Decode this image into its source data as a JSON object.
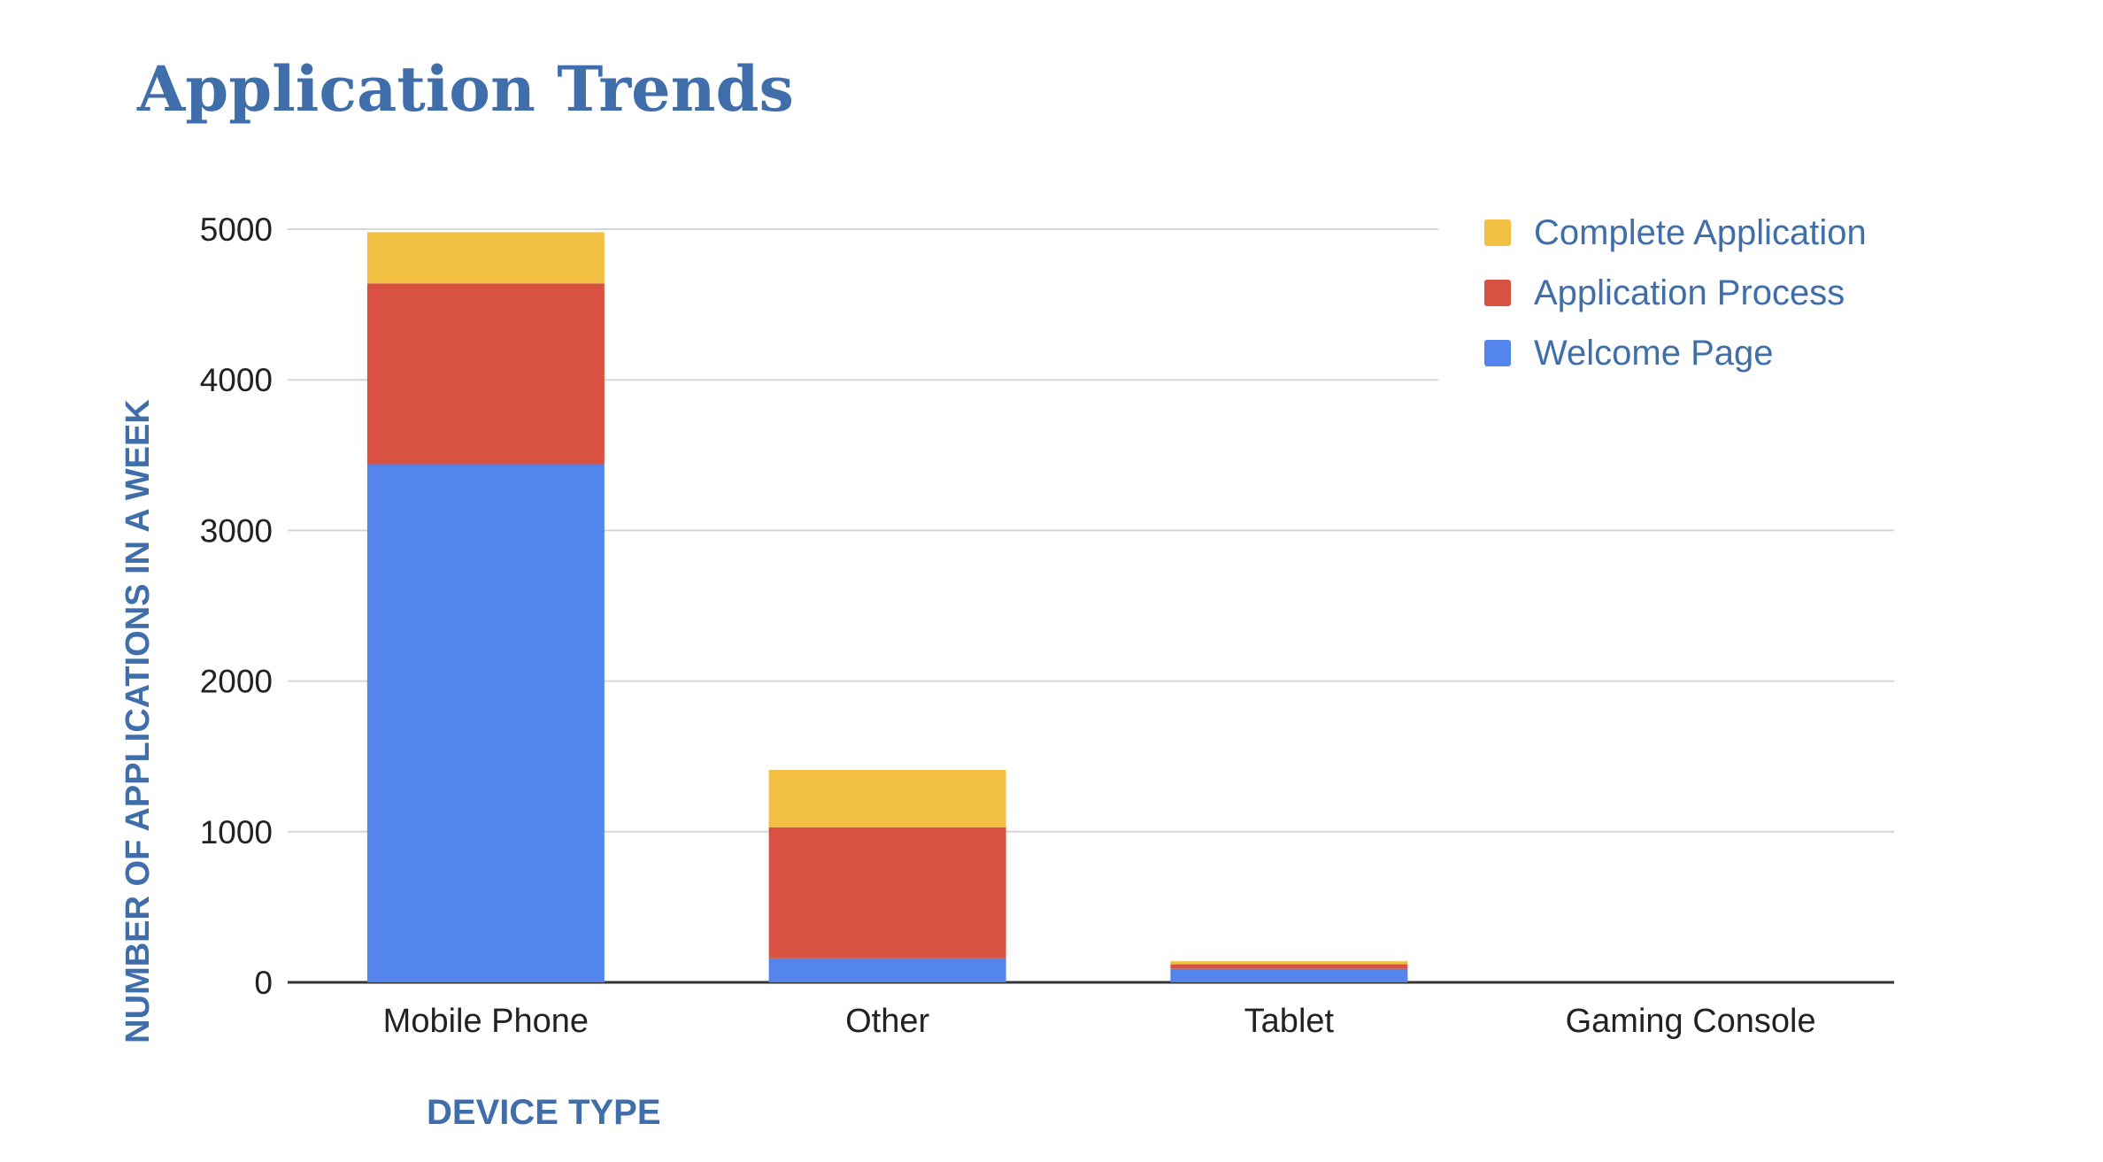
{
  "chart_data": {
    "type": "bar",
    "stacked": true,
    "title": "Application Trends",
    "xlabel": "DEVICE TYPE",
    "ylabel": "NUMBER OF APPLICATIONS IN A WEEK",
    "categories": [
      "Mobile Phone",
      "Other",
      "Tablet",
      "Gaming Console"
    ],
    "series": [
      {
        "name": "Welcome Page",
        "color": "#5385EC",
        "values": [
          3440,
          160,
          90,
          0
        ]
      },
      {
        "name": "Application Process",
        "color": "#D95140",
        "values": [
          1200,
          870,
          30,
          0
        ]
      },
      {
        "name": "Complete Application",
        "color": "#F1BF42",
        "values": [
          340,
          380,
          20,
          0
        ]
      }
    ],
    "ylim": [
      0,
      5000
    ],
    "yticks": [
      0,
      1000,
      2000,
      3000,
      4000,
      5000
    ],
    "grid": true,
    "legend": "top-right",
    "legend_order": [
      "Complete Application",
      "Application Process",
      "Welcome Page"
    ],
    "colors": {
      "title": "#3F6EAA",
      "axis_title": "#3F6EAA",
      "legend_text": "#3F6EAA",
      "tick_text": "#222222",
      "grid": "#D6D6D6",
      "baseline": "#333333"
    }
  }
}
